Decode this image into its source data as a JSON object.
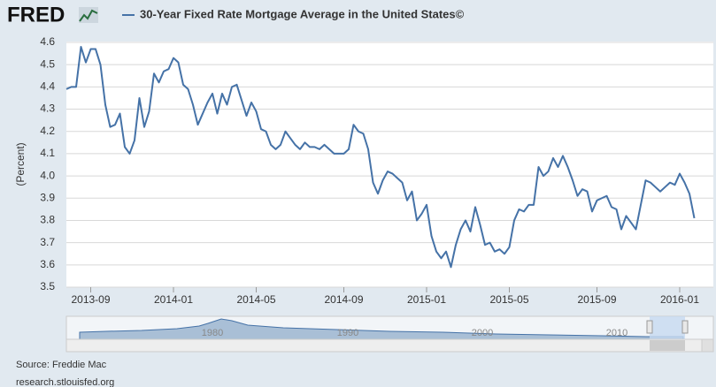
{
  "header": {
    "logo": "FRED"
  },
  "chart_data": {
    "type": "line",
    "ylabel": "(Percent)",
    "categories": [
      null,
      null,
      null,
      null,
      null,
      "2013-09",
      null,
      null,
      null,
      null,
      null,
      null,
      null,
      null,
      null,
      null,
      null,
      null,
      null,
      null,
      null,
      null,
      "2014-01",
      null,
      null,
      null,
      null,
      null,
      null,
      null,
      null,
      null,
      null,
      null,
      null,
      null,
      null,
      null,
      null,
      "2014-05",
      null,
      null,
      null,
      null,
      null,
      null,
      null,
      null,
      null,
      null,
      null,
      null,
      null,
      null,
      null,
      null,
      null,
      "2014-09",
      null,
      null,
      null,
      null,
      null,
      null,
      null,
      null,
      null,
      null,
      null,
      null,
      null,
      null,
      null,
      null,
      "2015-01",
      null,
      null,
      null,
      null,
      null,
      null,
      null,
      null,
      null,
      null,
      null,
      null,
      null,
      null,
      null,
      null,
      "2015-05",
      null,
      null,
      null,
      null,
      null,
      null,
      null,
      null,
      null,
      null,
      null,
      null,
      null,
      null,
      null,
      null,
      null,
      "2015-09",
      null,
      null,
      null,
      null,
      null,
      null,
      null,
      null,
      null,
      null,
      null,
      null,
      null,
      null,
      null,
      null,
      "2016-01",
      null,
      null,
      null
    ],
    "series": [
      {
        "name": "30-Year Fixed Rate Mortgage Average in the United States©",
        "color": "#4572a7",
        "values": [
          4.39,
          4.4,
          4.4,
          4.58,
          4.51,
          4.57,
          4.57,
          4.5,
          4.32,
          4.22,
          4.23,
          4.28,
          4.13,
          4.1,
          4.16,
          4.35,
          4.22,
          4.29,
          4.46,
          4.42,
          4.47,
          4.48,
          4.53,
          4.51,
          4.41,
          4.39,
          4.32,
          4.23,
          4.28,
          4.33,
          4.37,
          4.28,
          4.37,
          4.32,
          4.4,
          4.41,
          4.34,
          4.27,
          4.33,
          4.29,
          4.21,
          4.2,
          4.14,
          4.12,
          4.14,
          4.2,
          4.17,
          4.14,
          4.12,
          4.15,
          4.13,
          4.13,
          4.12,
          4.14,
          4.12,
          4.1,
          4.1,
          4.1,
          4.12,
          4.23,
          4.2,
          4.19,
          4.12,
          3.97,
          3.92,
          3.98,
          4.02,
          4.01,
          3.99,
          3.97,
          3.89,
          3.93,
          3.8,
          3.83,
          3.87,
          3.73,
          3.66,
          3.63,
          3.66,
          3.59,
          3.69,
          3.76,
          3.8,
          3.75,
          3.86,
          3.78,
          3.69,
          3.7,
          3.66,
          3.67,
          3.65,
          3.68,
          3.8,
          3.85,
          3.84,
          3.87,
          3.87,
          4.04,
          4.0,
          4.02,
          4.08,
          4.04,
          4.09,
          4.04,
          3.98,
          3.91,
          3.94,
          3.93,
          3.84,
          3.89,
          3.9,
          3.91,
          3.86,
          3.85,
          3.76,
          3.82,
          3.79,
          3.76,
          3.87,
          3.98,
          3.97,
          3.95,
          3.93,
          3.95,
          3.97,
          3.96,
          4.01,
          3.97,
          3.92,
          3.81
        ]
      }
    ],
    "ylim": [
      3.5,
      4.6
    ],
    "yticks": [
      3.5,
      3.6,
      3.7,
      3.8,
      3.9,
      {
        "value": 4,
        "label": "4.0"
      },
      4.1,
      4.2,
      4.3,
      4.4,
      4.5,
      4.6
    ],
    "grid": true
  },
  "navigator": {
    "labels": [
      "1980",
      "1990",
      "2000",
      "2010"
    ]
  },
  "footer": {
    "source": "Source: Freddie Mac",
    "url": "research.stlouisfed.org"
  }
}
